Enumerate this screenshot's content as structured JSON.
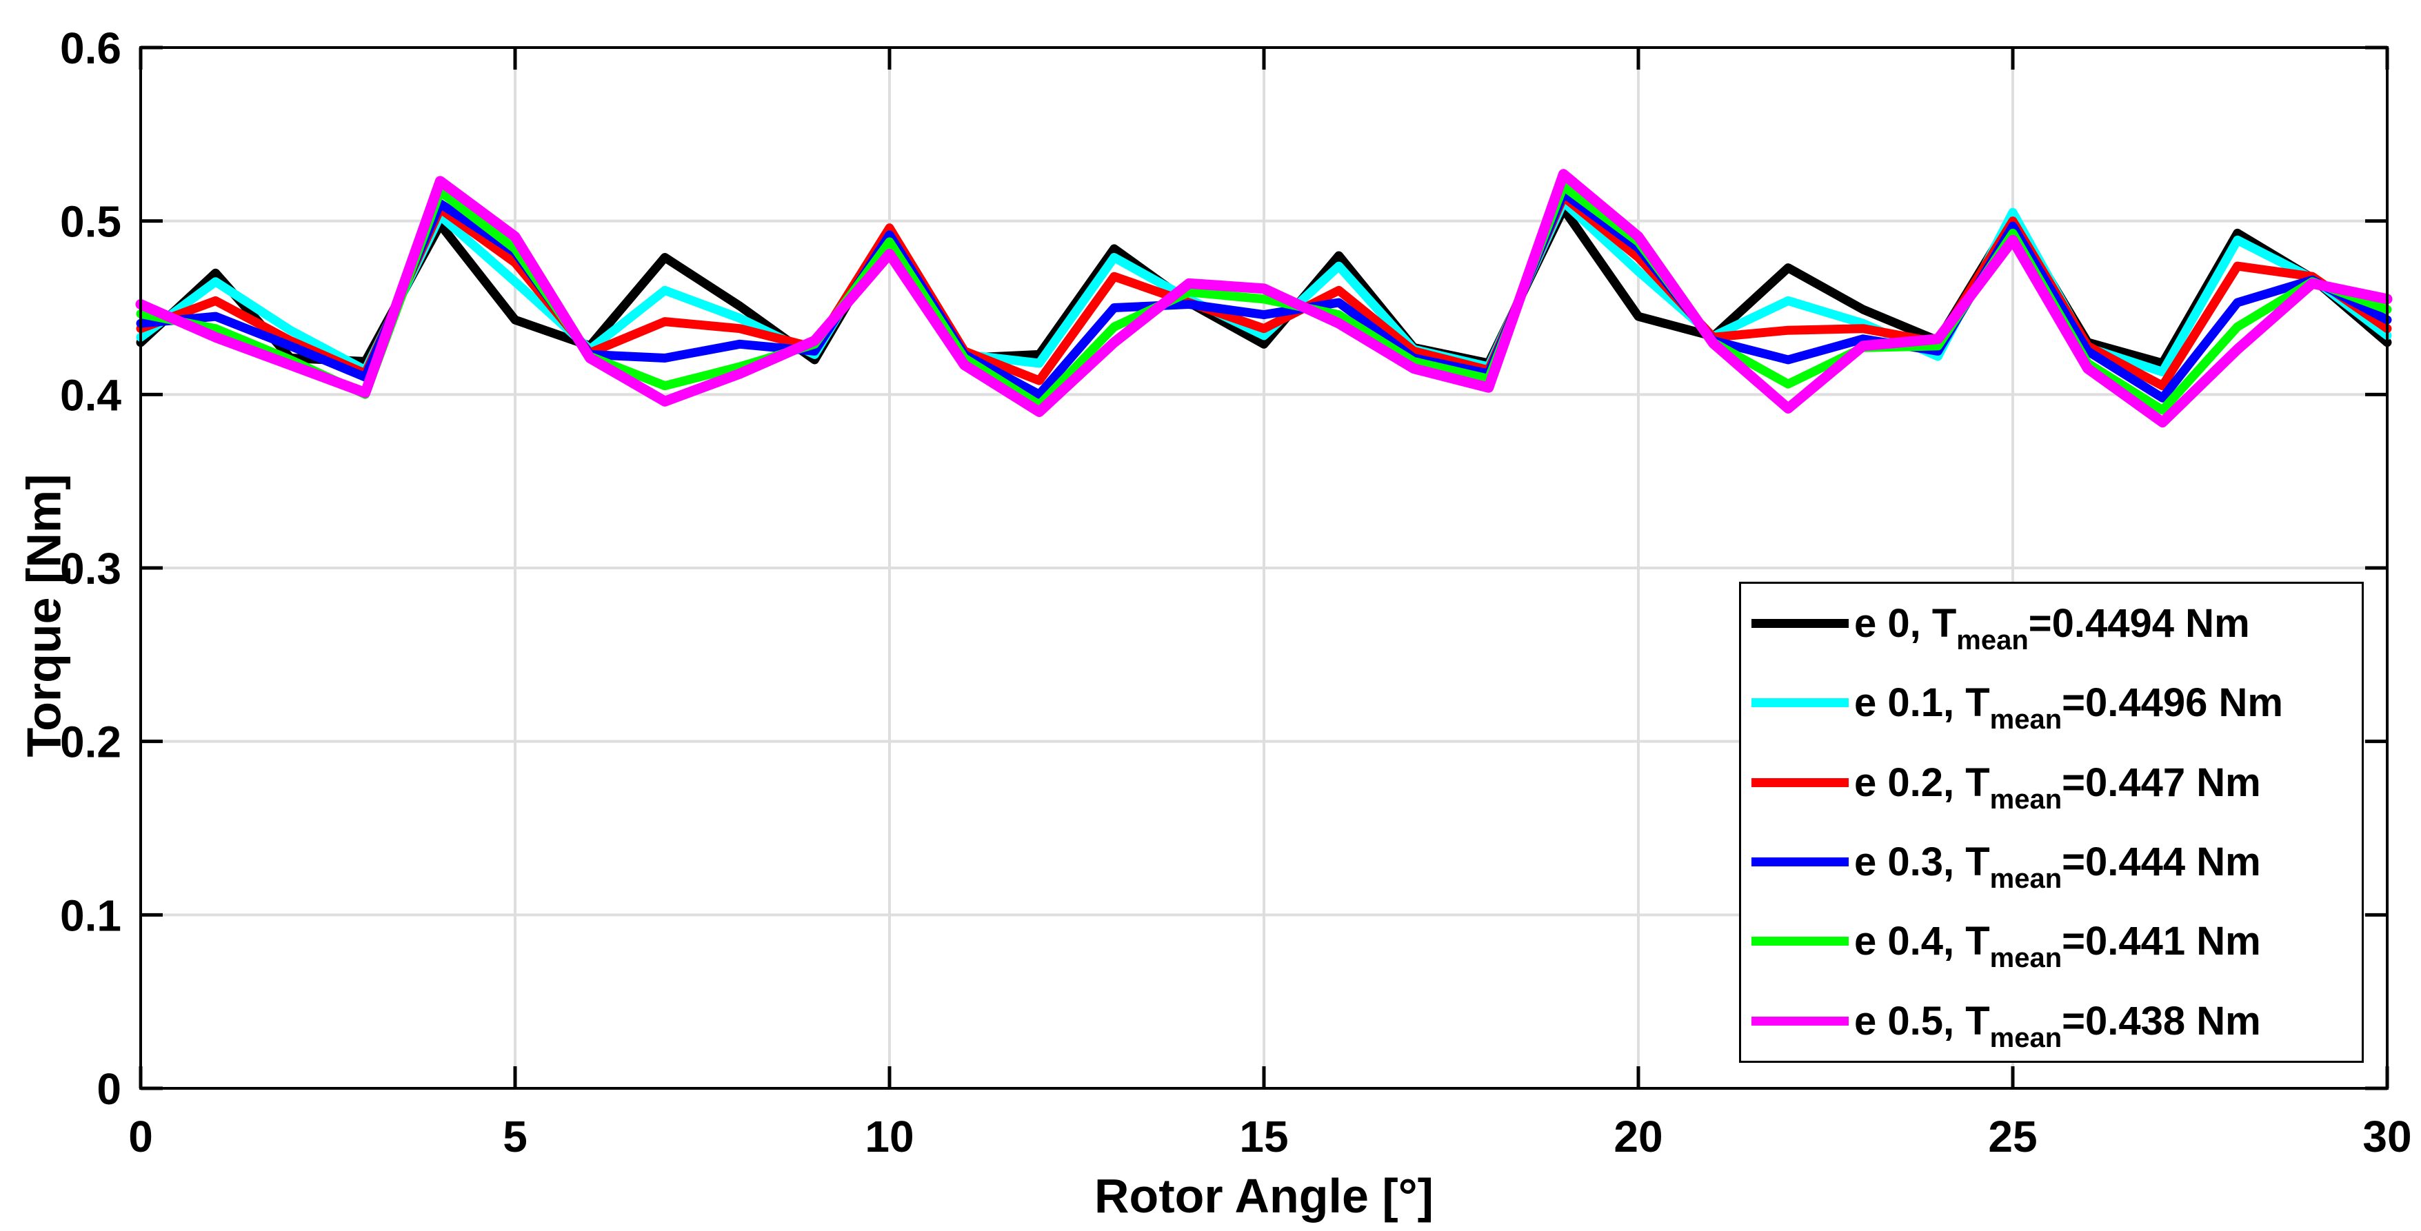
{
  "figure": {
    "background": "#FFFFFF"
  },
  "chart_data": {
    "type": "line",
    "title": "",
    "xlabel": "Rotor Angle [°]",
    "ylabel": "Torque [Nm]",
    "xlim": [
      0,
      30
    ],
    "ylim": [
      0,
      0.6
    ],
    "grid": true,
    "grid_color": "#DEDEDE",
    "axis_color": "#000000",
    "tick_label_fontsize": 64,
    "legend_position": "lower right inside",
    "x_ticks": {
      "values": [
        0,
        5,
        10,
        15,
        20,
        25,
        30
      ],
      "labels": [
        "0",
        "5",
        "10",
        "15",
        "20",
        "25",
        "30"
      ]
    },
    "y_ticks": {
      "values": [
        0,
        0.1,
        0.2,
        0.3,
        0.4,
        0.5,
        0.6
      ],
      "labels": [
        "0",
        "0.1",
        "0.2",
        "0.3",
        "0.4",
        "0.5",
        "0.6"
      ]
    },
    "x": [
      0,
      1,
      2,
      3,
      4,
      5,
      6,
      7,
      8,
      9,
      10,
      11,
      12,
      13,
      14,
      15,
      16,
      17,
      18,
      19,
      20,
      21,
      22,
      23,
      24,
      25,
      26,
      27,
      28,
      29,
      30
    ],
    "series": [
      {
        "name": "e 0",
        "mean_nm": 0.4494,
        "color": "#000000",
        "line_width": 13,
        "values": [
          0.43,
          0.47,
          0.421,
          0.419,
          0.498,
          0.443,
          0.428,
          0.479,
          0.451,
          0.42,
          0.4935,
          0.421,
          0.423,
          0.484,
          0.453,
          0.429,
          0.48,
          0.427,
          0.418,
          0.507,
          0.445,
          0.4335,
          0.473,
          0.449,
          0.431,
          0.502,
          0.43,
          0.418,
          0.493,
          0.467,
          0.43
        ]
      },
      {
        "name": "e 0.1",
        "mean_nm": 0.4496,
        "color": "#00FFFF",
        "line_width": 13,
        "values": [
          0.433,
          0.465,
          0.437,
          0.414,
          0.503,
          0.465,
          0.426,
          0.46,
          0.444,
          0.423,
          0.4945,
          0.423,
          0.418,
          0.479,
          0.455,
          0.434,
          0.474,
          0.426,
          0.416,
          0.511,
          0.471,
          0.4335,
          0.454,
          0.441,
          0.422,
          0.505,
          0.427,
          0.413,
          0.489,
          0.467,
          0.434
        ]
      },
      {
        "name": "e 0.2",
        "mean_nm": 0.447,
        "color": "#FF0000",
        "line_width": 13,
        "values": [
          0.438,
          0.454,
          0.431,
          0.412,
          0.507,
          0.476,
          0.424,
          0.442,
          0.438,
          0.427,
          0.496,
          0.425,
          0.408,
          0.468,
          0.453,
          0.438,
          0.46,
          0.425,
          0.414,
          0.514,
          0.479,
          0.433,
          0.437,
          0.438,
          0.43,
          0.5,
          0.428,
          0.405,
          0.474,
          0.468,
          0.438
        ]
      },
      {
        "name": "e 0.3",
        "mean_nm": 0.444,
        "color": "#0000FF",
        "line_width": 13,
        "values": [
          0.441,
          0.445,
          0.428,
          0.41,
          0.51,
          0.482,
          0.423,
          0.421,
          0.429,
          0.425,
          0.492,
          0.423,
          0.4,
          0.45,
          0.452,
          0.446,
          0.453,
          0.421,
          0.412,
          0.516,
          0.4845,
          0.431,
          0.42,
          0.432,
          0.425,
          0.497,
          0.425,
          0.398,
          0.453,
          0.466,
          0.443
        ]
      },
      {
        "name": "e 0.4",
        "mean_nm": 0.441,
        "color": "#00FF00",
        "line_width": 13,
        "values": [
          0.4465,
          0.438,
          0.42,
          0.4,
          0.517,
          0.484,
          0.422,
          0.405,
          0.416,
          0.429,
          0.488,
          0.421,
          0.394,
          0.439,
          0.459,
          0.455,
          0.446,
          0.419,
          0.409,
          0.52,
          0.488,
          0.43,
          0.406,
          0.427,
          0.428,
          0.493,
          0.418,
          0.391,
          0.439,
          0.465,
          0.449
        ]
      },
      {
        "name": "e 0.5",
        "mean_nm": 0.438,
        "color": "#FF00FF",
        "line_width": 15,
        "values": [
          0.452,
          0.433,
          0.417,
          0.401,
          0.523,
          0.491,
          0.421,
          0.396,
          0.412,
          0.431,
          0.481,
          0.417,
          0.39,
          0.43,
          0.464,
          0.461,
          0.441,
          0.415,
          0.404,
          0.527,
          0.491,
          0.4295,
          0.392,
          0.428,
          0.432,
          0.489,
          0.415,
          0.384,
          0.426,
          0.464,
          0.455
        ]
      }
    ]
  },
  "legend": {
    "entries": [
      {
        "prefix": "e 0, T",
        "sub": "mean",
        "suffix": "=0.4494 Nm",
        "color": "#000000"
      },
      {
        "prefix": "e 0.1, T",
        "sub": "mean",
        "suffix": "=0.4496 Nm",
        "color": "#00FFFF"
      },
      {
        "prefix": "e 0.2, T",
        "sub": "mean",
        "suffix": "=0.447 Nm",
        "color": "#FF0000"
      },
      {
        "prefix": "e 0.3, T",
        "sub": "mean",
        "suffix": "=0.444 Nm",
        "color": "#0000FF"
      },
      {
        "prefix": "e 0.4, T",
        "sub": "mean",
        "suffix": "=0.441 Nm",
        "color": "#00FF00"
      },
      {
        "prefix": "e 0.5, T",
        "sub": "mean",
        "suffix": "=0.438 Nm",
        "color": "#FF00FF"
      }
    ]
  }
}
